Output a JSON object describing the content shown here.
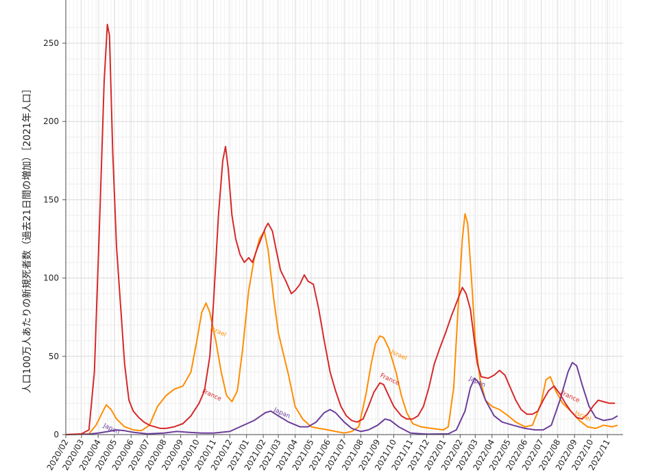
{
  "chart_data": {
    "type": "line",
    "ylabel": "人口100万人あたりの新規死者数（過去21日間の増加）［2021年人口］",
    "ylim": [
      0,
      265
    ],
    "yticks": [
      0,
      50,
      100,
      150,
      200,
      250
    ],
    "grid": true,
    "xlim": [
      "2020-02-01",
      "2022-11-30"
    ],
    "xtick_labels": [
      "2020/02",
      "2020/03",
      "2020/04",
      "2020/05",
      "2020/06",
      "2020/07",
      "2020/08",
      "2020/09",
      "2020/10",
      "2020/11",
      "2020/12",
      "2021/01",
      "2021/02",
      "2021/03",
      "2021/04",
      "2021/05",
      "2021/06",
      "2021/07",
      "2021/08",
      "2021/09",
      "2021/10",
      "2021/11",
      "2021/12",
      "2022/01",
      "2022/02",
      "2022/03",
      "2022/04",
      "2022/05",
      "2022/06",
      "2022/07",
      "2022/08",
      "2022/09",
      "2022/10",
      "2022/11"
    ],
    "series": [
      {
        "name": "France",
        "color": "#d62728",
        "points": [
          [
            "2020-02-01",
            0
          ],
          [
            "2020-03-01",
            0.5
          ],
          [
            "2020-03-15",
            3
          ],
          [
            "2020-03-25",
            40
          ],
          [
            "2020-04-05",
            150
          ],
          [
            "2020-04-12",
            225
          ],
          [
            "2020-04-18",
            262
          ],
          [
            "2020-04-22",
            255
          ],
          [
            "2020-04-28",
            180
          ],
          [
            "2020-05-05",
            120
          ],
          [
            "2020-05-12",
            85
          ],
          [
            "2020-05-20",
            45
          ],
          [
            "2020-05-28",
            22
          ],
          [
            "2020-06-05",
            15
          ],
          [
            "2020-06-15",
            11
          ],
          [
            "2020-06-25",
            8
          ],
          [
            "2020-07-05",
            6
          ],
          [
            "2020-07-15",
            5
          ],
          [
            "2020-07-25",
            4
          ],
          [
            "2020-08-05",
            4
          ],
          [
            "2020-08-20",
            5
          ],
          [
            "2020-09-05",
            7
          ],
          [
            "2020-09-20",
            12
          ],
          [
            "2020-10-05",
            20
          ],
          [
            "2020-10-15",
            28
          ],
          [
            "2020-10-25",
            50
          ],
          [
            "2020-11-01",
            85
          ],
          [
            "2020-11-10",
            140
          ],
          [
            "2020-11-18",
            175
          ],
          [
            "2020-11-23",
            184
          ],
          [
            "2020-11-28",
            170
          ],
          [
            "2020-12-05",
            140
          ],
          [
            "2020-12-12",
            125
          ],
          [
            "2020-12-20",
            115
          ],
          [
            "2020-12-28",
            110
          ],
          [
            "2021-01-05",
            113
          ],
          [
            "2021-01-12",
            110
          ],
          [
            "2021-01-20",
            118
          ],
          [
            "2021-01-28",
            125
          ],
          [
            "2021-02-05",
            132
          ],
          [
            "2021-02-10",
            135
          ],
          [
            "2021-02-18",
            130
          ],
          [
            "2021-02-25",
            118
          ],
          [
            "2021-03-05",
            105
          ],
          [
            "2021-03-15",
            98
          ],
          [
            "2021-03-25",
            90
          ],
          [
            "2021-04-01",
            92
          ],
          [
            "2021-04-10",
            96
          ],
          [
            "2021-04-18",
            102
          ],
          [
            "2021-04-25",
            98
          ],
          [
            "2021-05-05",
            96
          ],
          [
            "2021-05-15",
            80
          ],
          [
            "2021-05-25",
            60
          ],
          [
            "2021-06-05",
            40
          ],
          [
            "2021-06-15",
            28
          ],
          [
            "2021-06-25",
            18
          ],
          [
            "2021-07-05",
            12
          ],
          [
            "2021-07-15",
            9
          ],
          [
            "2021-07-25",
            8
          ],
          [
            "2021-08-05",
            10
          ],
          [
            "2021-08-15",
            18
          ],
          [
            "2021-08-25",
            27
          ],
          [
            "2021-09-05",
            33
          ],
          [
            "2021-09-12",
            32
          ],
          [
            "2021-09-20",
            26
          ],
          [
            "2021-10-01",
            18
          ],
          [
            "2021-10-15",
            12
          ],
          [
            "2021-10-25",
            10
          ],
          [
            "2021-11-05",
            10
          ],
          [
            "2021-11-15",
            12
          ],
          [
            "2021-11-25",
            18
          ],
          [
            "2021-12-05",
            30
          ],
          [
            "2021-12-15",
            45
          ],
          [
            "2021-12-25",
            55
          ],
          [
            "2022-01-05",
            65
          ],
          [
            "2022-01-15",
            75
          ],
          [
            "2022-01-25",
            84
          ],
          [
            "2022-02-05",
            94
          ],
          [
            "2022-02-12",
            90
          ],
          [
            "2022-02-20",
            80
          ],
          [
            "2022-02-28",
            58
          ],
          [
            "2022-03-05",
            45
          ],
          [
            "2022-03-12",
            37
          ],
          [
            "2022-03-25",
            36
          ],
          [
            "2022-04-05",
            38
          ],
          [
            "2022-04-15",
            41
          ],
          [
            "2022-04-25",
            38
          ],
          [
            "2022-05-05",
            30
          ],
          [
            "2022-05-15",
            22
          ],
          [
            "2022-05-25",
            16
          ],
          [
            "2022-06-05",
            13
          ],
          [
            "2022-06-15",
            13
          ],
          [
            "2022-06-25",
            15
          ],
          [
            "2022-07-05",
            22
          ],
          [
            "2022-07-15",
            28
          ],
          [
            "2022-07-25",
            31
          ],
          [
            "2022-08-05",
            26
          ],
          [
            "2022-08-15",
            20
          ],
          [
            "2022-08-25",
            15
          ],
          [
            "2022-09-05",
            11
          ],
          [
            "2022-09-15",
            10
          ],
          [
            "2022-09-25",
            13
          ],
          [
            "2022-10-05",
            18
          ],
          [
            "2022-10-15",
            22
          ],
          [
            "2022-10-25",
            21
          ],
          [
            "2022-11-05",
            20
          ],
          [
            "2022-11-15",
            20
          ]
        ]
      },
      {
        "name": "Israel",
        "color": "#ff8c00",
        "points": [
          [
            "2020-02-01",
            0
          ],
          [
            "2020-03-15",
            0.5
          ],
          [
            "2020-03-28",
            6
          ],
          [
            "2020-04-10",
            15
          ],
          [
            "2020-04-16",
            19
          ],
          [
            "2020-04-25",
            16
          ],
          [
            "2020-05-05",
            10
          ],
          [
            "2020-05-20",
            5
          ],
          [
            "2020-06-05",
            3
          ],
          [
            "2020-06-20",
            2.5
          ],
          [
            "2020-07-05",
            6
          ],
          [
            "2020-07-20",
            18
          ],
          [
            "2020-08-05",
            25
          ],
          [
            "2020-08-20",
            29
          ],
          [
            "2020-09-05",
            31
          ],
          [
            "2020-09-20",
            40
          ],
          [
            "2020-10-01",
            60
          ],
          [
            "2020-10-10",
            78
          ],
          [
            "2020-10-18",
            84
          ],
          [
            "2020-10-25",
            78
          ],
          [
            "2020-11-05",
            60
          ],
          [
            "2020-11-15",
            40
          ],
          [
            "2020-11-25",
            25
          ],
          [
            "2020-12-05",
            21
          ],
          [
            "2020-12-15",
            28
          ],
          [
            "2020-12-25",
            55
          ],
          [
            "2021-01-05",
            92
          ],
          [
            "2021-01-15",
            112
          ],
          [
            "2021-01-25",
            125
          ],
          [
            "2021-02-03",
            130
          ],
          [
            "2021-02-10",
            118
          ],
          [
            "2021-02-20",
            88
          ],
          [
            "2021-03-01",
            65
          ],
          [
            "2021-03-10",
            52
          ],
          [
            "2021-03-20",
            38
          ],
          [
            "2021-04-01",
            18
          ],
          [
            "2021-04-15",
            10
          ],
          [
            "2021-05-01",
            5
          ],
          [
            "2021-05-15",
            4
          ],
          [
            "2021-06-01",
            3
          ],
          [
            "2021-06-15",
            2
          ],
          [
            "2021-07-01",
            1
          ],
          [
            "2021-07-15",
            2
          ],
          [
            "2021-07-28",
            5
          ],
          [
            "2021-08-10",
            25
          ],
          [
            "2021-08-20",
            45
          ],
          [
            "2021-08-28",
            58
          ],
          [
            "2021-09-05",
            63
          ],
          [
            "2021-09-12",
            62
          ],
          [
            "2021-09-22",
            55
          ],
          [
            "2021-10-05",
            40
          ],
          [
            "2021-10-15",
            25
          ],
          [
            "2021-10-25",
            14
          ],
          [
            "2021-11-05",
            7
          ],
          [
            "2021-11-20",
            5
          ],
          [
            "2021-12-10",
            4
          ],
          [
            "2022-01-01",
            3
          ],
          [
            "2022-01-10",
            5
          ],
          [
            "2022-01-20",
            30
          ],
          [
            "2022-01-28",
            80
          ],
          [
            "2022-02-05",
            125
          ],
          [
            "2022-02-10",
            141
          ],
          [
            "2022-02-15",
            135
          ],
          [
            "2022-02-22",
            100
          ],
          [
            "2022-03-01",
            60
          ],
          [
            "2022-03-10",
            35
          ],
          [
            "2022-03-20",
            22
          ],
          [
            "2022-04-01",
            18
          ],
          [
            "2022-04-15",
            16
          ],
          [
            "2022-05-01",
            12
          ],
          [
            "2022-05-15",
            8
          ],
          [
            "2022-06-01",
            5
          ],
          [
            "2022-06-15",
            6
          ],
          [
            "2022-07-01",
            20
          ],
          [
            "2022-07-10",
            35
          ],
          [
            "2022-07-18",
            37
          ],
          [
            "2022-07-28",
            28
          ],
          [
            "2022-08-10",
            20
          ],
          [
            "2022-08-25",
            15
          ],
          [
            "2022-09-10",
            9
          ],
          [
            "2022-09-25",
            5
          ],
          [
            "2022-10-10",
            4
          ],
          [
            "2022-10-25",
            6
          ],
          [
            "2022-11-10",
            5
          ],
          [
            "2022-11-20",
            6
          ]
        ]
      },
      {
        "name": "Japan",
        "color": "#6a3d9a",
        "points": [
          [
            "2020-02-01",
            0
          ],
          [
            "2020-03-15",
            0.3
          ],
          [
            "2020-04-01",
            1
          ],
          [
            "2020-04-20",
            2
          ],
          [
            "2020-05-05",
            3
          ],
          [
            "2020-05-20",
            2.5
          ],
          [
            "2020-06-05",
            1.5
          ],
          [
            "2020-07-01",
            0.5
          ],
          [
            "2020-08-01",
            1
          ],
          [
            "2020-08-25",
            2
          ],
          [
            "2020-09-15",
            1.5
          ],
          [
            "2020-10-10",
            1
          ],
          [
            "2020-11-01",
            1
          ],
          [
            "2020-12-01",
            2
          ],
          [
            "2020-12-20",
            5
          ],
          [
            "2021-01-15",
            9
          ],
          [
            "2021-02-05",
            14
          ],
          [
            "2021-02-15",
            15
          ],
          [
            "2021-03-01",
            12
          ],
          [
            "2021-03-20",
            8
          ],
          [
            "2021-04-10",
            5
          ],
          [
            "2021-04-25",
            5
          ],
          [
            "2021-05-10",
            8
          ],
          [
            "2021-05-25",
            14
          ],
          [
            "2021-06-05",
            16
          ],
          [
            "2021-06-15",
            14
          ],
          [
            "2021-07-01",
            8
          ],
          [
            "2021-07-15",
            4
          ],
          [
            "2021-08-01",
            2
          ],
          [
            "2021-08-15",
            3
          ],
          [
            "2021-09-01",
            6
          ],
          [
            "2021-09-15",
            10
          ],
          [
            "2021-09-25",
            9
          ],
          [
            "2021-10-10",
            5
          ],
          [
            "2021-11-01",
            1
          ],
          [
            "2021-12-01",
            0.3
          ],
          [
            "2022-01-10",
            0.5
          ],
          [
            "2022-01-25",
            3
          ],
          [
            "2022-02-10",
            15
          ],
          [
            "2022-02-20",
            30
          ],
          [
            "2022-02-28",
            36
          ],
          [
            "2022-03-08",
            33
          ],
          [
            "2022-03-20",
            22
          ],
          [
            "2022-04-05",
            12
          ],
          [
            "2022-04-20",
            8
          ],
          [
            "2022-05-10",
            6
          ],
          [
            "2022-06-01",
            4
          ],
          [
            "2022-06-20",
            3
          ],
          [
            "2022-07-05",
            3
          ],
          [
            "2022-07-20",
            6
          ],
          [
            "2022-08-05",
            22
          ],
          [
            "2022-08-20",
            40
          ],
          [
            "2022-08-28",
            46
          ],
          [
            "2022-09-05",
            44
          ],
          [
            "2022-09-15",
            32
          ],
          [
            "2022-09-28",
            18
          ],
          [
            "2022-10-10",
            11
          ],
          [
            "2022-10-25",
            9
          ],
          [
            "2022-11-10",
            10
          ],
          [
            "2022-11-20",
            12
          ]
        ]
      }
    ],
    "annotations": [
      {
        "text": "Japan",
        "series": "Japan",
        "date": "2020-04-10",
        "value": 5
      },
      {
        "text": "Israel",
        "series": "Israel",
        "date": "2020-10-25",
        "value": 67
      },
      {
        "text": "France",
        "series": "France",
        "date": "2020-10-10",
        "value": 27
      },
      {
        "text": "Japan",
        "series": "Japan",
        "date": "2021-02-20",
        "value": 15
      },
      {
        "text": "France",
        "series": "France",
        "date": "2021-09-05",
        "value": 37
      },
      {
        "text": "Israel",
        "series": "Israel",
        "date": "2021-09-25",
        "value": 52
      },
      {
        "text": "Japan",
        "series": "Japan",
        "date": "2022-02-17",
        "value": 35
      },
      {
        "text": "France",
        "series": "France",
        "date": "2022-08-05",
        "value": 26
      },
      {
        "text": "Israel",
        "series": "Israel",
        "date": "2022-09-01",
        "value": 13
      }
    ]
  }
}
